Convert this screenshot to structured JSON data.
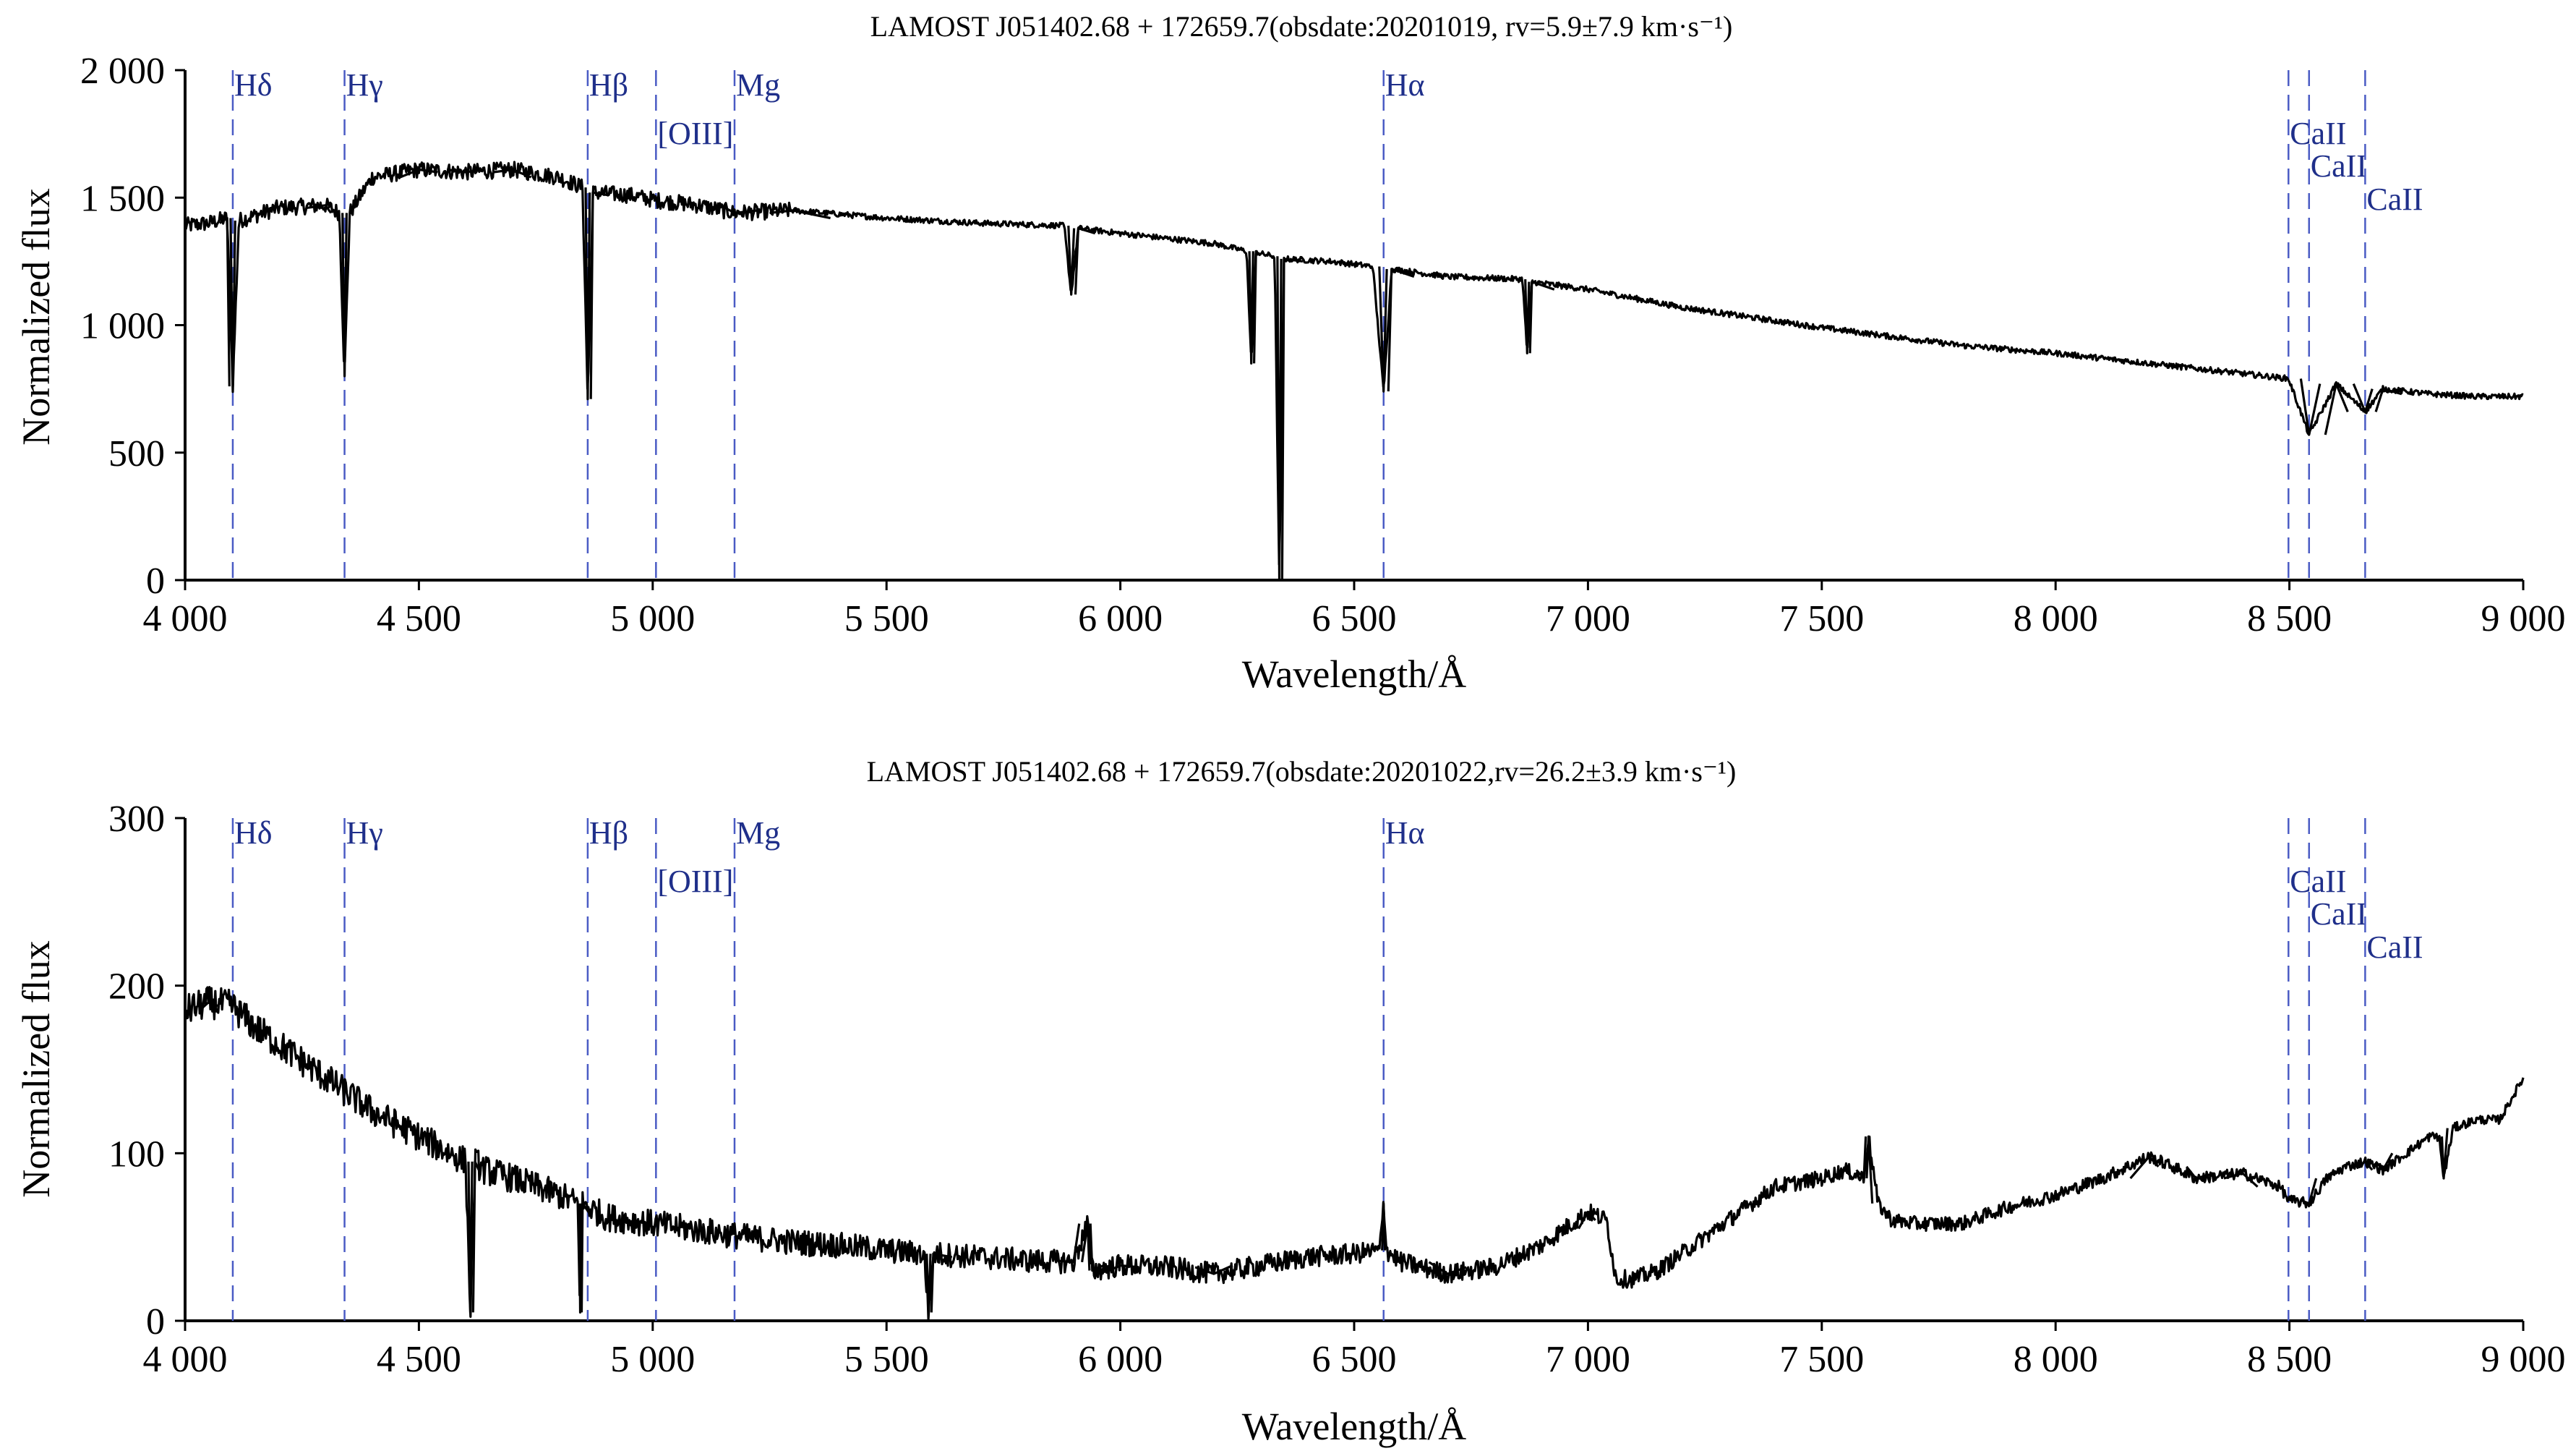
{
  "chart_data": [
    {
      "type": "line",
      "title": "LAMOST J051402.68 + 172659.7(obsdate:20201019, rv=5.9±7.9 km·s⁻¹)",
      "xlabel": "Wavelength/Å",
      "ylabel": "Normalized flux",
      "xlim": [
        4000,
        9000
      ],
      "ylim": [
        0,
        2000
      ],
      "xticks": [
        4000,
        4500,
        5000,
        5500,
        6000,
        6500,
        7000,
        7500,
        8000,
        8500,
        9000
      ],
      "xtick_labels": [
        "4 000",
        "4 500",
        "5 000",
        "5 500",
        "6 000",
        "6 500",
        "7 000",
        "7 500",
        "8 000",
        "8 500",
        "9 000"
      ],
      "yticks": [
        0,
        500,
        1000,
        1500,
        2000
      ],
      "ytick_labels": [
        "0",
        "500",
        "1 000",
        "1 500",
        "2 000"
      ],
      "grid": false,
      "lines": [
        {
          "label": "Hδ",
          "x": 4102,
          "label_level": 0
        },
        {
          "label": "Hγ",
          "x": 4341,
          "label_level": 0
        },
        {
          "label": "Hβ",
          "x": 4861,
          "label_level": 0
        },
        {
          "label": "[OIII]",
          "x": 5007,
          "label_level": 1
        },
        {
          "label": "Mg",
          "x": 5175,
          "label_level": 0
        },
        {
          "label": "Hα",
          "x": 6563,
          "label_level": 0
        },
        {
          "label": "CaII",
          "x": 8498,
          "label_level": 1
        },
        {
          "label": "CaII",
          "x": 8542,
          "label_level": 2
        },
        {
          "label": "CaII",
          "x": 8662,
          "label_level": 3
        }
      ],
      "series": [
        {
          "x": [
            4000,
            4050,
            4090,
            4102,
            4115,
            4200,
            4300,
            4330,
            4341,
            4352,
            4400,
            4500,
            4600,
            4700,
            4800,
            4850,
            4861,
            4872,
            4950,
            5007,
            5100,
            5175,
            5300,
            5500,
            5700,
            5880,
            5895,
            5910,
            6000,
            6200,
            6270,
            6280,
            6290,
            6300,
            6330,
            6340,
            6350,
            6450,
            6540,
            6563,
            6580,
            6700,
            6860,
            6870,
            6880,
            7000,
            7200,
            7500,
            7800,
            8000,
            8200,
            8400,
            8498,
            8542,
            8600,
            8662,
            8700,
            8800,
            8900,
            9000
          ],
          "y": [
            1390,
            1400,
            1420,
            760,
            1410,
            1460,
            1470,
            1440,
            800,
            1440,
            1580,
            1610,
            1600,
            1610,
            1580,
            1540,
            710,
            1520,
            1510,
            1490,
            1470,
            1440,
            1450,
            1420,
            1400,
            1390,
            1120,
            1380,
            1360,
            1320,
            1290,
            850,
            1290,
            1280,
            1270,
            0,
            1260,
            1250,
            1230,
            740,
            1220,
            1190,
            1180,
            890,
            1170,
            1140,
            1070,
            990,
            920,
            890,
            850,
            810,
            790,
            570,
            770,
            660,
            750,
            730,
            720,
            720
          ]
        }
      ]
    },
    {
      "type": "line",
      "title": "LAMOST J051402.68 + 172659.7(obsdate:20201022,rv=26.2±3.9 km·s⁻¹)",
      "xlabel": "Wavelength/Å",
      "ylabel": "Normalized flux",
      "xlim": [
        4000,
        9000
      ],
      "ylim": [
        0,
        300
      ],
      "xticks": [
        4000,
        4500,
        5000,
        5500,
        6000,
        6500,
        7000,
        7500,
        8000,
        8500,
        9000
      ],
      "xtick_labels": [
        "4 000",
        "4 500",
        "5 000",
        "5 500",
        "6 000",
        "6 500",
        "7 000",
        "7 500",
        "8 000",
        "8 500",
        "9 000"
      ],
      "yticks": [
        0,
        100,
        200,
        300
      ],
      "ytick_labels": [
        "0",
        "100",
        "200",
        "300"
      ],
      "grid": false,
      "lines": [
        {
          "label": "Hδ",
          "x": 4102,
          "label_level": 0
        },
        {
          "label": "Hγ",
          "x": 4341,
          "label_level": 0
        },
        {
          "label": "Hβ",
          "x": 4861,
          "label_level": 0
        },
        {
          "label": "[OIII]",
          "x": 5007,
          "label_level": 1
        },
        {
          "label": "Mg",
          "x": 5175,
          "label_level": 0
        },
        {
          "label": "Hα",
          "x": 6563,
          "label_level": 0
        },
        {
          "label": "CaII",
          "x": 8498,
          "label_level": 1
        },
        {
          "label": "CaII",
          "x": 8542,
          "label_level": 2
        },
        {
          "label": "CaII",
          "x": 8662,
          "label_level": 3
        }
      ],
      "series": [
        {
          "x": [
            4000,
            4050,
            4100,
            4150,
            4200,
            4250,
            4300,
            4400,
            4500,
            4600,
            4610,
            4620,
            4640,
            4700,
            4800,
            4840,
            4845,
            4850,
            4900,
            5000,
            5100,
            5200,
            5300,
            5400,
            5500,
            5580,
            5590,
            5600,
            5700,
            5800,
            5900,
            5930,
            5940,
            6000,
            6100,
            6200,
            6300,
            6400,
            6500,
            6555,
            6563,
            6570,
            6600,
            6700,
            6800,
            6900,
            6950,
            7000,
            7040,
            7060,
            7100,
            7150,
            7200,
            7300,
            7400,
            7500,
            7550,
            7590,
            7600,
            7620,
            7650,
            7700,
            7800,
            7900,
            8000,
            8100,
            8200,
            8250,
            8300,
            8400,
            8480,
            8498,
            8542,
            8580,
            8620,
            8662,
            8700,
            8750,
            8800,
            8820,
            8830,
            8850,
            8900,
            8950,
            9000
          ],
          "y": [
            185,
            190,
            188,
            175,
            165,
            155,
            145,
            125,
            110,
            95,
            5,
            95,
            90,
            85,
            75,
            70,
            5,
            70,
            62,
            58,
            54,
            50,
            47,
            45,
            42,
            40,
            5,
            40,
            38,
            36,
            35,
            58,
            30,
            33,
            32,
            28,
            33,
            38,
            40,
            42,
            70,
            42,
            35,
            28,
            32,
            45,
            55,
            65,
            60,
            25,
            25,
            30,
            40,
            60,
            80,
            85,
            90,
            85,
            110,
            70,
            60,
            58,
            58,
            68,
            75,
            85,
            98,
            92,
            85,
            88,
            80,
            72,
            70,
            85,
            92,
            95,
            90,
            100,
            110,
            110,
            85,
            115,
            120,
            120,
            145
          ]
        }
      ]
    }
  ]
}
